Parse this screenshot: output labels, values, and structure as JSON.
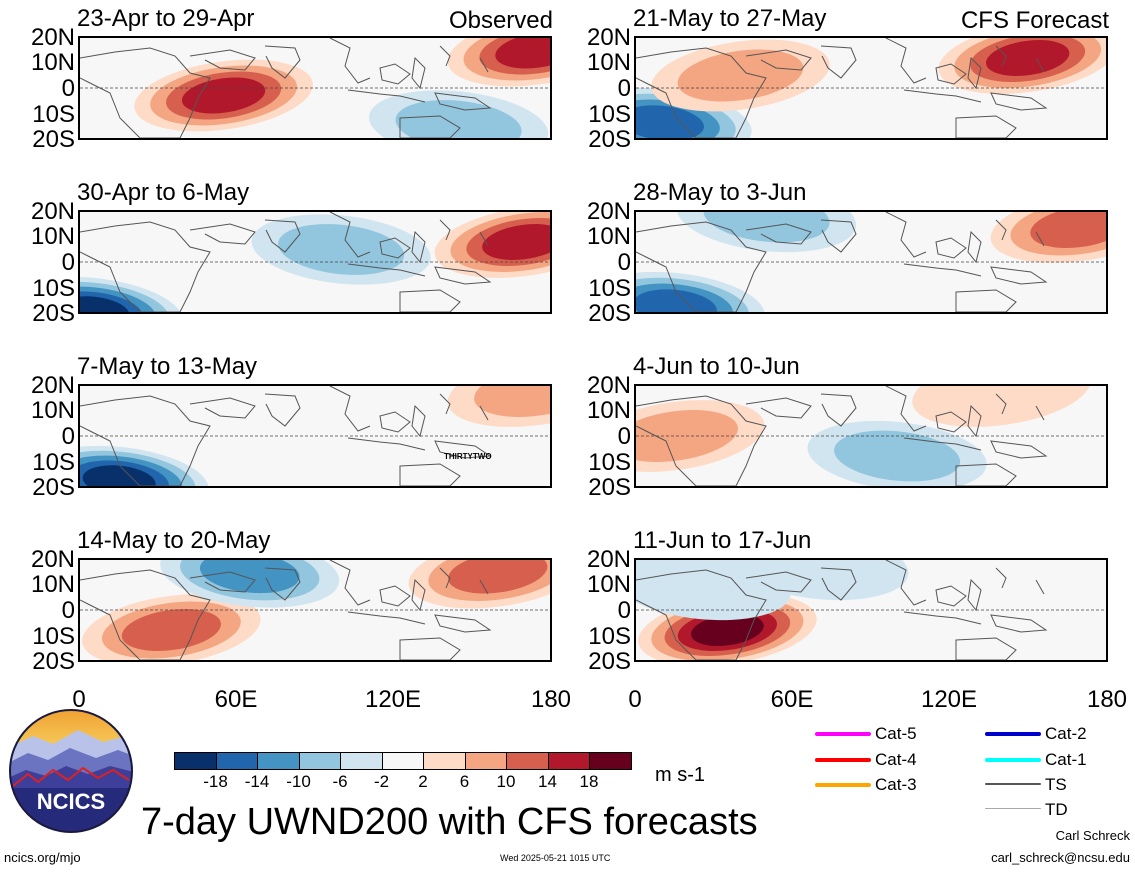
{
  "header": {
    "observed_label": "Observed",
    "forecast_label": "CFS Forecast"
  },
  "panels": [
    {
      "title": "23-Apr to 29-Apr",
      "col": 0,
      "row": 0
    },
    {
      "title": "30-Apr to 6-May",
      "col": 0,
      "row": 1
    },
    {
      "title": "7-May to 13-May",
      "col": 0,
      "row": 2
    },
    {
      "title": "14-May to 20-May",
      "col": 0,
      "row": 3
    },
    {
      "title": "21-May to 27-May",
      "col": 1,
      "row": 0
    },
    {
      "title": "28-May to 3-Jun",
      "col": 1,
      "row": 1
    },
    {
      "title": "4-Jun to 10-Jun",
      "col": 1,
      "row": 2
    },
    {
      "title": "11-Jun to 17-Jun",
      "col": 1,
      "row": 3
    }
  ],
  "axes": {
    "lat_labels": [
      "20N",
      "10N",
      "0",
      "10S",
      "20S"
    ],
    "lon_labels": [
      "0",
      "60E",
      "120E",
      "180"
    ]
  },
  "storm_label": "THIRTYTWO",
  "colorbar": {
    "units": "m s-1",
    "tick_labels": [
      "-18",
      "-14",
      "-10",
      "-6",
      "-2",
      "2",
      "6",
      "10",
      "14",
      "18"
    ],
    "colors": [
      "#08306b",
      "#2166ac",
      "#4393c3",
      "#92c5de",
      "#d1e5f0",
      "#f7f7f7",
      "#fddbc7",
      "#f4a582",
      "#d6604d",
      "#b2182b",
      "#67001f"
    ]
  },
  "legend": [
    {
      "label": "Cat-5",
      "color": "#ff00ff"
    },
    {
      "label": "Cat-4",
      "color": "#ff0000"
    },
    {
      "label": "Cat-3",
      "color": "#ffa500"
    },
    {
      "label": "Cat-2",
      "color": "#0000cc"
    },
    {
      "label": "Cat-1",
      "color": "#00ffff"
    },
    {
      "label": "TS",
      "color": "#555555"
    },
    {
      "label": "TD",
      "color": "#aaaaaa"
    }
  ],
  "logo_text": "NCICS",
  "main_title": "7-day UWND200 with CFS forecasts",
  "footer": {
    "url": "ncics.org/mjo",
    "timestamp": "Wed 2025-05-21 1015 UTC",
    "author": "Carl Schreck",
    "email": "carl_schreck@ncsu.edu"
  },
  "chart_data": [
    {
      "type": "heatmap",
      "title": "23-Apr to 29-Apr",
      "variable": "UWND200 anomaly",
      "units": "m s-1",
      "xlim": [
        0,
        180
      ],
      "ylim": [
        -20,
        20
      ],
      "features": [
        {
          "lon": 55,
          "lat": -3,
          "value": 16
        },
        {
          "lon": 175,
          "lat": 15,
          "value": 14
        },
        {
          "lon": 145,
          "lat": -15,
          "value": -8
        }
      ]
    },
    {
      "type": "heatmap",
      "title": "30-Apr to 6-May",
      "variable": "UWND200 anomaly",
      "units": "m s-1",
      "xlim": [
        0,
        180
      ],
      "ylim": [
        -20,
        20
      ],
      "features": [
        {
          "lon": 170,
          "lat": 8,
          "value": 14
        },
        {
          "lon": 5,
          "lat": -20,
          "value": -18
        },
        {
          "lon": 100,
          "lat": 5,
          "value": -6
        }
      ]
    },
    {
      "type": "heatmap",
      "title": "7-May to 13-May",
      "variable": "UWND200 anomaly",
      "units": "m s-1",
      "xlim": [
        0,
        180
      ],
      "ylim": [
        -20,
        20
      ],
      "features": [
        {
          "lon": 15,
          "lat": -18,
          "value": -18
        },
        {
          "lon": 175,
          "lat": 18,
          "value": 8
        }
      ]
    },
    {
      "type": "heatmap",
      "title": "14-May to 20-May",
      "variable": "UWND200 anomaly",
      "units": "m s-1",
      "xlim": [
        0,
        180
      ],
      "ylim": [
        -20,
        20
      ],
      "features": [
        {
          "lon": 35,
          "lat": -8,
          "value": 12
        },
        {
          "lon": 65,
          "lat": 15,
          "value": -10
        },
        {
          "lon": 160,
          "lat": 15,
          "value": 12
        }
      ]
    },
    {
      "type": "heatmap",
      "title": "21-May to 27-May",
      "variable": "UWND200 anomaly",
      "units": "m s-1",
      "xlim": [
        0,
        180
      ],
      "ylim": [
        -20,
        20
      ],
      "features": [
        {
          "lon": 150,
          "lat": 12,
          "value": 16
        },
        {
          "lon": 10,
          "lat": -14,
          "value": -16
        },
        {
          "lon": 40,
          "lat": 5,
          "value": 6
        }
      ]
    },
    {
      "type": "heatmap",
      "title": "28-May to 3-Jun",
      "variable": "UWND200 anomaly",
      "units": "m s-1",
      "xlim": [
        0,
        180
      ],
      "ylim": [
        -20,
        20
      ],
      "features": [
        {
          "lon": 170,
          "lat": 14,
          "value": 12
        },
        {
          "lon": 15,
          "lat": -18,
          "value": -16
        },
        {
          "lon": 50,
          "lat": 18,
          "value": -6
        }
      ]
    },
    {
      "type": "heatmap",
      "title": "4-Jun to 10-Jun",
      "variable": "UWND200 anomaly",
      "units": "m s-1",
      "xlim": [
        0,
        180
      ],
      "ylim": [
        -20,
        20
      ],
      "features": [
        {
          "lon": 15,
          "lat": 0,
          "value": 6
        },
        {
          "lon": 100,
          "lat": -8,
          "value": -6
        },
        {
          "lon": 140,
          "lat": 18,
          "value": 4
        }
      ]
    },
    {
      "type": "heatmap",
      "title": "11-Jun to 17-Jun",
      "variable": "UWND200 anomaly",
      "units": "m s-1",
      "xlim": [
        0,
        180
      ],
      "ylim": [
        -20,
        20
      ],
      "features": [
        {
          "lon": 35,
          "lat": -8,
          "value": 18
        },
        {
          "lon": 25,
          "lat": 10,
          "value": -4
        },
        {
          "lon": 70,
          "lat": 18,
          "value": -4
        }
      ]
    }
  ]
}
